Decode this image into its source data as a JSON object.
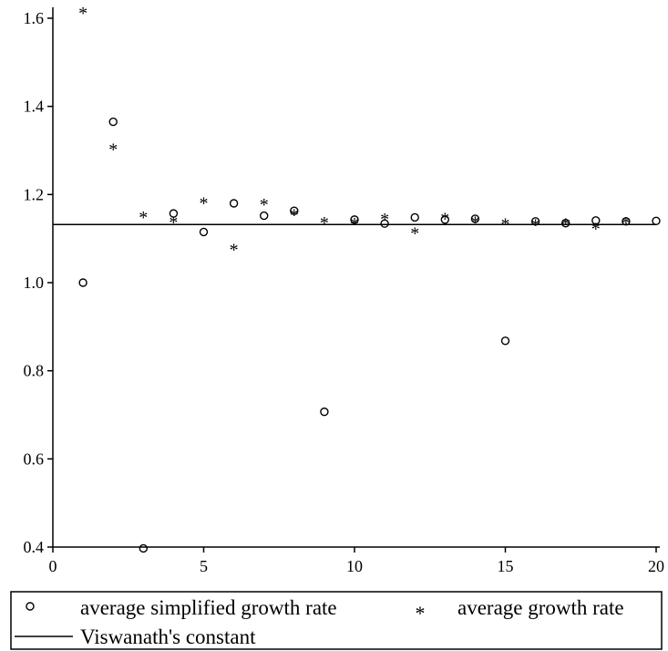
{
  "chart_data": {
    "type": "scatter",
    "xlim": [
      0,
      20
    ],
    "ylim": [
      0.4,
      1.6
    ],
    "x_ticks": [
      0,
      5,
      10,
      15,
      20
    ],
    "x_tick_labels": [
      "0",
      "5",
      "10",
      "15",
      "20"
    ],
    "y_ticks": [
      0.4,
      0.6,
      0.8,
      1.0,
      1.2,
      1.4,
      1.6
    ],
    "y_tick_labels": [
      "0.4",
      "0.6",
      "0.8",
      "1.0",
      "1.2",
      "1.4",
      "1.6"
    ],
    "grid": false,
    "legend_position": "bottom",
    "series": [
      {
        "name": "average simplified growth rate",
        "marker": "circle",
        "points": [
          [
            1,
            1.0
          ],
          [
            2,
            1.365
          ],
          [
            3,
            0.397
          ],
          [
            4,
            1.157
          ],
          [
            5,
            1.115
          ],
          [
            6,
            1.18
          ],
          [
            7,
            1.152
          ],
          [
            8,
            1.163
          ],
          [
            9,
            0.707
          ],
          [
            10,
            1.143
          ],
          [
            11,
            1.134
          ],
          [
            12,
            1.148
          ],
          [
            13,
            1.143
          ],
          [
            14,
            1.145
          ],
          [
            15,
            0.868
          ],
          [
            16,
            1.139
          ],
          [
            17,
            1.135
          ],
          [
            18,
            1.141
          ],
          [
            19,
            1.139
          ],
          [
            20,
            1.14
          ]
        ]
      },
      {
        "name": "average growth rate",
        "marker": "star",
        "points": [
          [
            1,
            1.617
          ],
          [
            2,
            1.307
          ],
          [
            3,
            1.153
          ],
          [
            4,
            1.142
          ],
          [
            5,
            1.185
          ],
          [
            6,
            1.08
          ],
          [
            7,
            1.182
          ],
          [
            8,
            1.158
          ],
          [
            9,
            1.141
          ],
          [
            10,
            1.139
          ],
          [
            11,
            1.149
          ],
          [
            12,
            1.117
          ],
          [
            13,
            1.15
          ],
          [
            14,
            1.142
          ],
          [
            15,
            1.138
          ],
          [
            16,
            1.136
          ],
          [
            17,
            1.138
          ],
          [
            18,
            1.127
          ],
          [
            19,
            1.141
          ]
        ]
      }
    ],
    "reference_line": {
      "name": "Viswanath's constant",
      "y": 1.1319
    }
  }
}
